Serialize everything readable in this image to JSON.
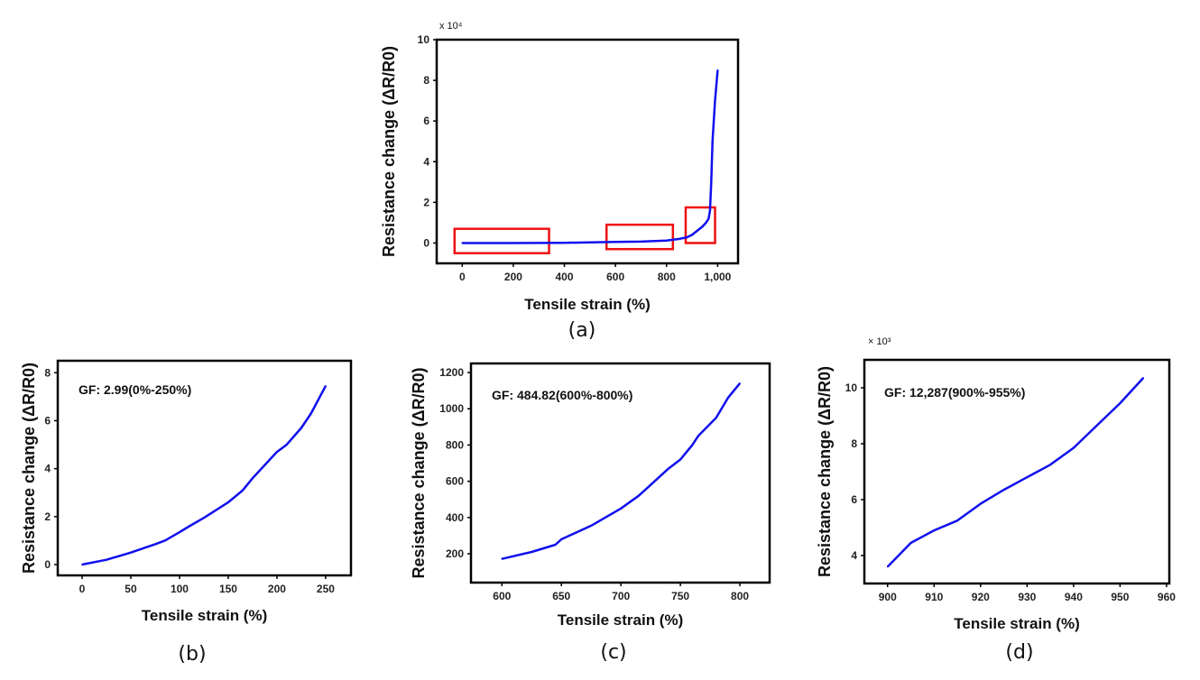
{
  "chart_data": [
    {
      "type": "line",
      "panel_label": "(a)",
      "xlabel": "Tensile strain (%)",
      "ylabel": "Resistance change (ΔR/R0)",
      "y_multiplier": "x 10⁴",
      "xlim": [
        -100,
        1080
      ],
      "ylim": [
        -1,
        10
      ],
      "xticks": [
        0,
        200,
        400,
        600,
        800,
        1000
      ],
      "xtick_labels": [
        "0",
        "200",
        "400",
        "600",
        "800",
        "1,000"
      ],
      "yticks": [
        0,
        2,
        4,
        6,
        8,
        10
      ],
      "ytick_labels": [
        "0",
        "2",
        "4",
        "6",
        "8",
        "10"
      ],
      "series_color": "#1010ee",
      "x": [
        0,
        200,
        400,
        500,
        600,
        700,
        800,
        850,
        880,
        900,
        920,
        940,
        955,
        965,
        970,
        975,
        980,
        990,
        1000
      ],
      "y": [
        0,
        0,
        0.01,
        0.03,
        0.05,
        0.07,
        0.12,
        0.2,
        0.28,
        0.4,
        0.6,
        0.8,
        1.0,
        1.2,
        1.6,
        3,
        5,
        7,
        8.5
      ],
      "highlight_color": "#ee1111",
      "highlight_regions": [
        {
          "x": [
            -30,
            340
          ],
          "y": [
            -0.5,
            0.7
          ]
        },
        {
          "x": [
            565,
            825
          ],
          "y": [
            -0.3,
            0.9
          ]
        },
        {
          "x": [
            875,
            990
          ],
          "y": [
            0,
            1.75
          ]
        }
      ],
      "grid": false
    },
    {
      "type": "line",
      "panel_label": "(b)",
      "annotation": "GF: 2.99(0%-250%)",
      "xlabel": "Tensile strain (%)",
      "ylabel": "Resistance change (ΔR/R0)",
      "xlim": [
        -25,
        276
      ],
      "ylim": [
        -0.45,
        8.5
      ],
      "xticks": [
        0,
        50,
        100,
        150,
        200,
        250
      ],
      "xtick_labels": [
        "0",
        "50",
        "100",
        "150",
        "200",
        "250"
      ],
      "yticks": [
        0,
        2,
        4,
        6,
        8
      ],
      "ytick_labels": [
        "0",
        "2",
        "4",
        "6",
        "8"
      ],
      "series_color": "#1010ee",
      "x": [
        0,
        25,
        50,
        75,
        85,
        100,
        110,
        125,
        150,
        165,
        175,
        200,
        210,
        225,
        235,
        250
      ],
      "y": [
        0,
        0.2,
        0.5,
        0.85,
        1.0,
        1.35,
        1.6,
        1.95,
        2.6,
        3.1,
        3.6,
        4.7,
        5.0,
        5.7,
        6.3,
        7.45
      ],
      "grid": false
    },
    {
      "type": "line",
      "panel_label": "(c)",
      "annotation": "GF: 484.82(600%-800%)",
      "xlabel": "Tensile strain (%)",
      "ylabel": "Resistance change (ΔR/R0)",
      "xlim": [
        574,
        825
      ],
      "ylim": [
        41,
        1250
      ],
      "xticks": [
        600,
        650,
        700,
        750,
        800
      ],
      "xtick_labels": [
        "600",
        "650",
        "700",
        "750",
        "800"
      ],
      "yticks": [
        200,
        400,
        600,
        800,
        1000,
        1200
      ],
      "ytick_labels": [
        "200",
        "400",
        "600",
        "800",
        "1000",
        "1200"
      ],
      "series_color": "#1010ee",
      "x": [
        600,
        625,
        645,
        650,
        675,
        700,
        715,
        725,
        740,
        750,
        760,
        765,
        780,
        790,
        800
      ],
      "y": [
        172,
        210,
        250,
        280,
        355,
        450,
        520,
        580,
        670,
        720,
        800,
        850,
        950,
        1060,
        1140
      ],
      "grid": false
    },
    {
      "type": "line",
      "panel_label": "(d)",
      "annotation": "GF: 12,287(900%-955%)",
      "xlabel": "Tensile strain (%)",
      "ylabel": "Resistance change (ΔR/R0)",
      "y_multiplier": "× 10³",
      "xlim": [
        895,
        960.6
      ],
      "ylim": [
        3,
        11
      ],
      "xticks": [
        900,
        910,
        920,
        930,
        940,
        950,
        960
      ],
      "xtick_labels": [
        "900",
        "910",
        "920",
        "930",
        "940",
        "950",
        "960"
      ],
      "yticks": [
        4,
        6,
        8,
        10
      ],
      "ytick_labels": [
        "4",
        "6",
        "8",
        "10"
      ],
      "series_color": "#1010ee",
      "x": [
        900,
        905,
        910,
        915,
        920,
        925,
        930,
        935,
        940,
        945,
        950,
        955
      ],
      "y": [
        3.6,
        4.45,
        4.9,
        5.25,
        5.85,
        6.35,
        6.8,
        7.25,
        7.85,
        8.65,
        9.45,
        10.35
      ],
      "grid": false
    }
  ]
}
